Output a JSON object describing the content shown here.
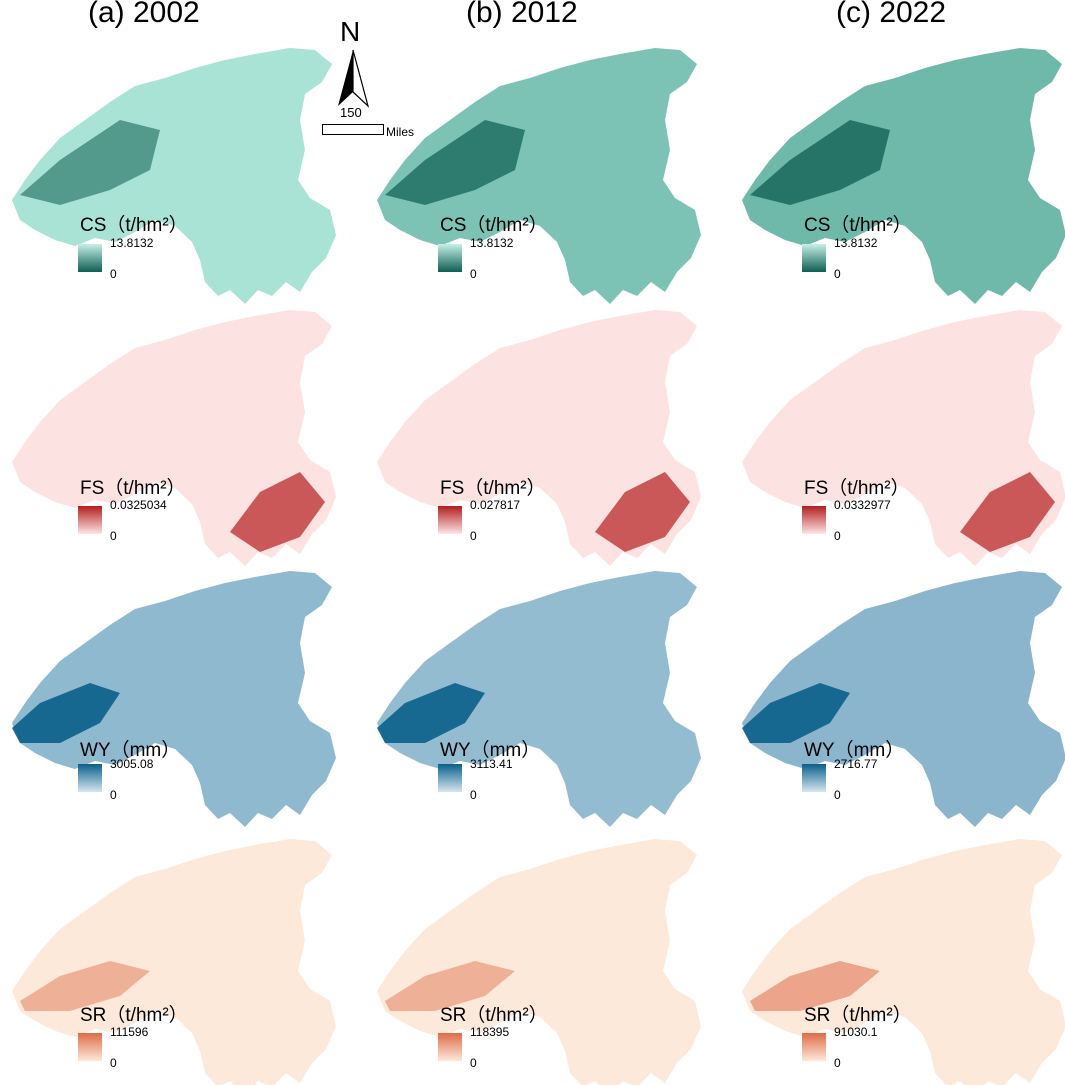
{
  "columns": [
    {
      "title": "(a) 2002"
    },
    {
      "title": "(b) 2012"
    },
    {
      "title": "(c) 2022"
    }
  ],
  "north_arrow": {
    "label": "N"
  },
  "scale": {
    "value": "150",
    "unit": "Miles"
  },
  "rows": [
    {
      "legend_title": "CS（t/hm²）",
      "colors": {
        "high": "#0d5e52",
        "low": "#b3ebe1"
      },
      "legends": [
        {
          "max": "13.8132",
          "min": "0"
        },
        {
          "max": "13.8132",
          "min": "0"
        },
        {
          "max": "13.8132",
          "min": "0"
        }
      ]
    },
    {
      "legend_title": "FS（t/hm²）",
      "colors": {
        "high": "#b31e1e",
        "low": "#fde0e0"
      },
      "legends": [
        {
          "max": "0.0325034",
          "min": "0"
        },
        {
          "max": "0.027817",
          "min": "0"
        },
        {
          "max": "0.0332977",
          "min": "0"
        }
      ]
    },
    {
      "legend_title": "WY（mm）",
      "colors": {
        "high": "#0a5f8a",
        "low": "#d6e7ef"
      },
      "legends": [
        {
          "max": "3005.08",
          "min": "0"
        },
        {
          "max": "3113.41",
          "min": "0"
        },
        {
          "max": "2716.77",
          "min": "0"
        }
      ]
    },
    {
      "legend_title": "SR（t/hm²）",
      "colors": {
        "high": "#de6b48",
        "low": "#fde8d8"
      },
      "legends": [
        {
          "max": "111596",
          "min": "0"
        },
        {
          "max": "118395",
          "min": "0"
        },
        {
          "max": "91030.1",
          "min": "0"
        }
      ]
    }
  ]
}
